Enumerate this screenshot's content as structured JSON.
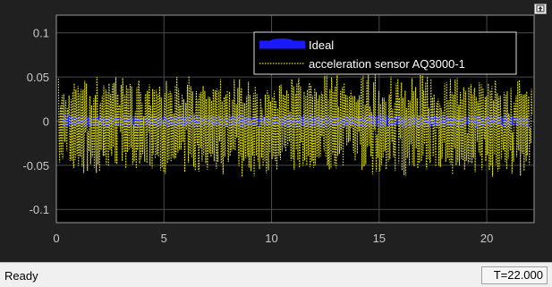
{
  "plot": {
    "background_color": "#000000",
    "figure_color": "#202020",
    "grid_color": "#4a4a4a",
    "tick_color": "#c8c8c8",
    "expand_icon": "restore-icon"
  },
  "chart_data": {
    "type": "line",
    "title": "",
    "xlabel": "",
    "ylabel": "",
    "xlim": [
      0,
      22.2
    ],
    "ylim": [
      -0.115,
      0.12
    ],
    "xticks": [
      0,
      5,
      10,
      15,
      20
    ],
    "xtick_labels": [
      "0",
      "5",
      "10",
      "15",
      "20"
    ],
    "yticks": [
      0.1,
      0.05,
      0,
      -0.05,
      -0.1
    ],
    "ytick_labels": [
      "0.1",
      "0.05",
      "0",
      "-0.05",
      "-0.1"
    ],
    "grid": true,
    "legend_position": "top-right",
    "series": [
      {
        "name": "Ideal",
        "color": "#1a1aff",
        "style": "solid-thick",
        "amplitude": 0.008,
        "offset": 0.0
      },
      {
        "name": "acceleration sensor AQ3000-1",
        "color": "#e6e600",
        "style": "dotted",
        "amplitude": 0.045,
        "offset": -0.005
      }
    ]
  },
  "status": {
    "text": "Ready",
    "time_label": "T=22.000"
  }
}
